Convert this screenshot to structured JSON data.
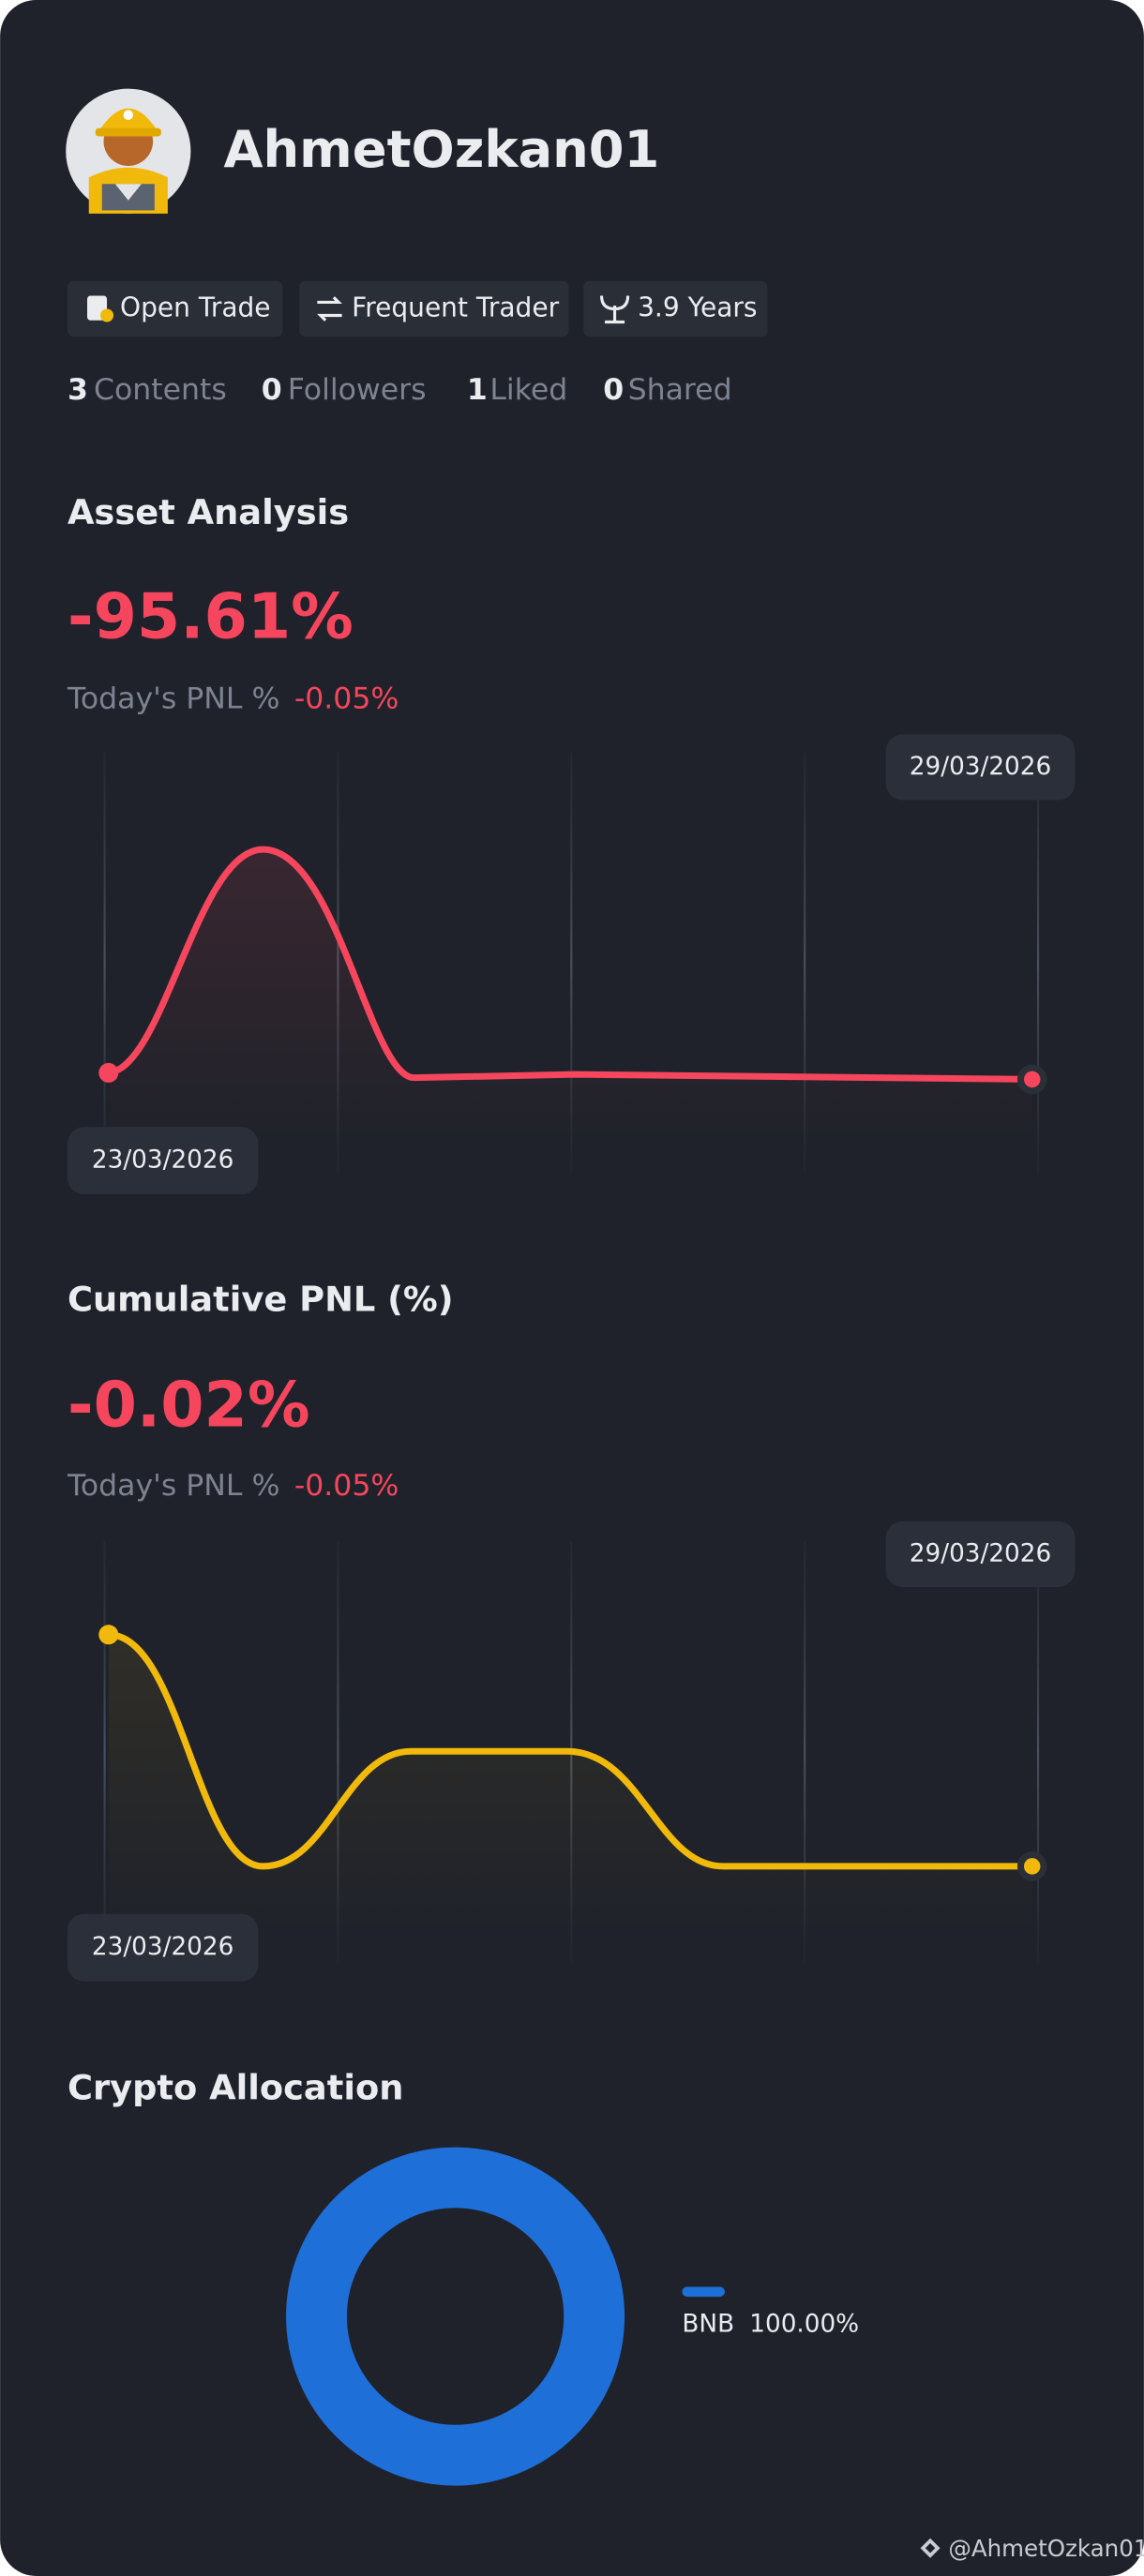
{
  "profile": {
    "name": "AhmetOzkan01",
    "badges": [
      "Open Trade",
      "Frequent Trader",
      "3.9 Years"
    ],
    "stats": [
      {
        "count": 3,
        "label": "Contents"
      },
      {
        "count": 0,
        "label": "Followers"
      },
      {
        "count": 1,
        "label": "Liked"
      },
      {
        "count": 0,
        "label": "Shared"
      }
    ]
  },
  "asset_analysis": {
    "title": "Asset Analysis",
    "value": "-95.61%",
    "today_label": "Today's PNL %",
    "today_value": "-0.05%",
    "start_date": "23/03/2026",
    "end_date": "29/03/2026"
  },
  "cumulative_pnl": {
    "title": "Cumulative PNL (%)",
    "value": "-0.02%",
    "today_label": "Today's PNL %",
    "today_value": "-0.05%",
    "start_date": "23/03/2026",
    "end_date": "29/03/2026"
  },
  "crypto_allocation": {
    "title": "Crypto Allocation",
    "items": [
      {
        "name": "BNB",
        "value": 100,
        "value_label": "100.00%",
        "color": "#1f6fd8"
      }
    ]
  },
  "footer": {
    "handle": "@AhmetOzkan01"
  }
}
